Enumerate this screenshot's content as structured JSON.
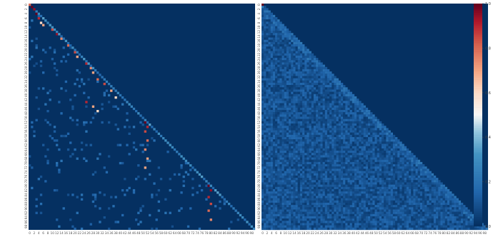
{
  "chart_data": [
    {
      "type": "heatmap",
      "title": "",
      "xlabel": "",
      "ylabel": "",
      "n_rows": 100,
      "n_cols": 100,
      "mask": "upper triangle (col > row) rendered as base color",
      "colormap": "RdBu_r",
      "x_tick_labels": [
        "0",
        "2",
        "4",
        "6",
        "8",
        "10",
        "12",
        "14",
        "16",
        "18",
        "20",
        "22",
        "24",
        "26",
        "28",
        "30",
        "32",
        "34",
        "36",
        "38",
        "40",
        "42",
        "44",
        "46",
        "48",
        "50",
        "52",
        "54",
        "56",
        "58",
        "60",
        "62",
        "64",
        "66",
        "68",
        "70",
        "72",
        "74",
        "76",
        "78",
        "80",
        "82",
        "84",
        "86",
        "88",
        "90",
        "92",
        "94",
        "96",
        "98"
      ],
      "y_tick_labels": [
        "0",
        "2",
        "4",
        "6",
        "8",
        "10",
        "12",
        "14",
        "16",
        "18",
        "20",
        "22",
        "24",
        "26",
        "28",
        "30",
        "32",
        "34",
        "36",
        "38",
        "40",
        "42",
        "44",
        "46",
        "48",
        "50",
        "52",
        "54",
        "56",
        "58",
        "60",
        "62",
        "64",
        "66",
        "68",
        "70",
        "72",
        "74",
        "76",
        "78",
        "80",
        "82",
        "84",
        "86",
        "88",
        "90",
        "92",
        "94",
        "96",
        "98"
      ],
      "background_value": 0.0,
      "notable_cells": [
        {
          "row": 0,
          "col": 0,
          "value": 0.8
        },
        {
          "row": 1,
          "col": 1,
          "value": 1.0
        },
        {
          "row": 2,
          "col": 2,
          "value": 0.95
        },
        {
          "row": 4,
          "col": 3,
          "value": 1.0
        },
        {
          "row": 6,
          "col": 4,
          "value": 0.9
        },
        {
          "row": 8,
          "col": 5,
          "value": 0.6
        },
        {
          "row": 9,
          "col": 6,
          "value": 0.7
        },
        {
          "row": 11,
          "col": 10,
          "value": 0.85
        },
        {
          "row": 13,
          "col": 12,
          "value": 0.95
        },
        {
          "row": 15,
          "col": 14,
          "value": 0.75
        },
        {
          "row": 18,
          "col": 17,
          "value": 0.8
        },
        {
          "row": 21,
          "col": 20,
          "value": 0.85
        },
        {
          "row": 23,
          "col": 21,
          "value": 0.7
        },
        {
          "row": 26,
          "col": 25,
          "value": 0.9
        },
        {
          "row": 28,
          "col": 27,
          "value": 0.75
        },
        {
          "row": 30,
          "col": 28,
          "value": 0.7
        },
        {
          "row": 33,
          "col": 30,
          "value": 0.8
        },
        {
          "row": 35,
          "col": 33,
          "value": 0.85
        },
        {
          "row": 38,
          "col": 36,
          "value": 0.7
        },
        {
          "row": 41,
          "col": 38,
          "value": 0.6
        },
        {
          "row": 43,
          "col": 25,
          "value": 0.9
        },
        {
          "row": 45,
          "col": 28,
          "value": 0.7
        },
        {
          "row": 47,
          "col": 30,
          "value": 0.6
        },
        {
          "row": 52,
          "col": 51,
          "value": 1.0
        },
        {
          "row": 54,
          "col": 52,
          "value": 0.9
        },
        {
          "row": 56,
          "col": 51,
          "value": 0.85
        },
        {
          "row": 60,
          "col": 52,
          "value": 0.8
        },
        {
          "row": 64,
          "col": 51,
          "value": 0.75
        },
        {
          "row": 68,
          "col": 52,
          "value": 0.7
        },
        {
          "row": 72,
          "col": 51,
          "value": 0.7
        },
        {
          "row": 80,
          "col": 79,
          "value": 1.0
        },
        {
          "row": 82,
          "col": 80,
          "value": 0.95
        },
        {
          "row": 85,
          "col": 79,
          "value": 0.9
        },
        {
          "row": 88,
          "col": 80,
          "value": 0.85
        },
        {
          "row": 91,
          "col": 79,
          "value": 0.8
        },
        {
          "row": 95,
          "col": 80,
          "value": 0.75
        }
      ]
    },
    {
      "type": "heatmap",
      "title": "",
      "xlabel": "",
      "ylabel": "",
      "n_rows": 100,
      "n_cols": 100,
      "mask": "upper triangle (col > row) rendered as base color",
      "colormap": "RdBu_r",
      "x_tick_labels": [
        "0",
        "2",
        "4",
        "6",
        "8",
        "10",
        "12",
        "14",
        "16",
        "18",
        "20",
        "22",
        "24",
        "26",
        "28",
        "30",
        "32",
        "34",
        "36",
        "38",
        "40",
        "42",
        "44",
        "46",
        "48",
        "50",
        "52",
        "54",
        "56",
        "58",
        "60",
        "62",
        "64",
        "66",
        "68",
        "70",
        "72",
        "74",
        "76",
        "78",
        "80",
        "82",
        "84",
        "86",
        "88",
        "90",
        "92",
        "94",
        "96",
        "98"
      ],
      "y_tick_labels": [
        "0",
        "2",
        "4",
        "6",
        "8",
        "10",
        "12",
        "14",
        "16",
        "18",
        "20",
        "22",
        "24",
        "26",
        "28",
        "30",
        "32",
        "34",
        "36",
        "38",
        "40",
        "42",
        "44",
        "46",
        "48",
        "50",
        "52",
        "54",
        "56",
        "58",
        "60",
        "62",
        "64",
        "66",
        "68",
        "70",
        "72",
        "74",
        "76",
        "78",
        "80",
        "82",
        "84",
        "86",
        "88",
        "90",
        "92",
        "94",
        "96",
        "98"
      ],
      "background_value": 0.0,
      "typical_lower_triangle_value": 0.1,
      "notable_cells": [
        {
          "row": 0,
          "col": 0,
          "value": 1.0
        },
        {
          "row": 1,
          "col": 0,
          "value": 0.25
        },
        {
          "row": 3,
          "col": 1,
          "value": 0.2
        },
        {
          "row": 6,
          "col": 2,
          "value": 0.2
        },
        {
          "row": 10,
          "col": 4,
          "value": 0.18
        },
        {
          "row": 24,
          "col": 20,
          "value": 0.22
        },
        {
          "row": 40,
          "col": 37,
          "value": 0.2
        },
        {
          "row": 60,
          "col": 55,
          "value": 0.18
        },
        {
          "row": 75,
          "col": 70,
          "value": 0.17
        }
      ]
    }
  ],
  "colorbar": {
    "min": 0.0,
    "max": 1.0,
    "tick_labels": [
      "1.0",
      "0.8",
      "0.6",
      "0.4",
      "0.2",
      "0.0"
    ],
    "colors": {
      "low": "#053061",
      "mid": "#f7f7f7",
      "high": "#67001f"
    }
  }
}
